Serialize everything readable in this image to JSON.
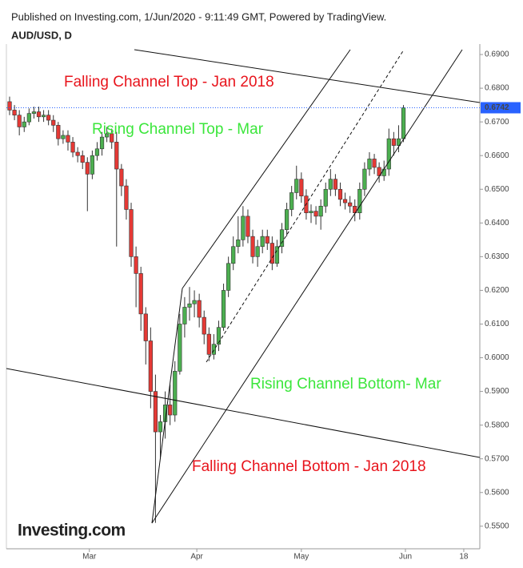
{
  "chart_data": {
    "type": "candlestick",
    "header": "Published on Investing.com, 1/Jun/2020 - 9:11:49 GMT, Powered by TradingView.",
    "title": "AUD/USD, D",
    "logo": "Investing.com",
    "up_color": "#4caf50",
    "down_color": "#e53935",
    "open": [
      0.676,
      0.6735,
      0.672,
      0.6685,
      0.67,
      0.6725,
      0.673,
      0.6715,
      0.672,
      0.6705,
      0.669,
      0.665,
      0.666,
      0.664,
      0.661,
      0.66,
      0.658,
      0.6545,
      0.66,
      0.662,
      0.6655,
      0.6665,
      0.664,
      0.656,
      0.651,
      0.644,
      0.63,
      0.625,
      0.613,
      0.605,
      0.59,
      0.578,
      0.581,
      0.586,
      0.583,
      0.596,
      0.61,
      0.615,
      0.616,
      0.617,
      0.612,
      0.607,
      0.601,
      0.604,
      0.609,
      0.62,
      0.628,
      0.633,
      0.635,
      0.642,
      0.636,
      0.63,
      0.633,
      0.636,
      0.634,
      0.628,
      0.633,
      0.638,
      0.644,
      0.649,
      0.653,
      0.648,
      0.643,
      0.6435,
      0.642,
      0.645,
      0.65,
      0.653,
      0.65,
      0.647,
      0.646,
      0.645,
      0.643,
      0.65,
      0.656,
      0.659,
      0.6565,
      0.654,
      0.656,
      0.665,
      0.663,
      0.665
    ],
    "high": [
      0.6775,
      0.675,
      0.6735,
      0.6715,
      0.674,
      0.6745,
      0.6745,
      0.6735,
      0.6735,
      0.672,
      0.67,
      0.6675,
      0.6675,
      0.6655,
      0.6625,
      0.6615,
      0.6595,
      0.6615,
      0.664,
      0.667,
      0.6685,
      0.668,
      0.667,
      0.6575,
      0.653,
      0.646,
      0.633,
      0.627,
      0.615,
      0.609,
      0.595,
      0.583,
      0.59,
      0.592,
      0.599,
      0.613,
      0.618,
      0.621,
      0.62,
      0.619,
      0.614,
      0.609,
      0.607,
      0.611,
      0.622,
      0.63,
      0.636,
      0.642,
      0.645,
      0.644,
      0.638,
      0.635,
      0.638,
      0.638,
      0.636,
      0.635,
      0.64,
      0.646,
      0.651,
      0.657,
      0.655,
      0.65,
      0.6455,
      0.645,
      0.647,
      0.652,
      0.656,
      0.6545,
      0.652,
      0.649,
      0.648,
      0.647,
      0.652,
      0.658,
      0.661,
      0.6605,
      0.658,
      0.6585,
      0.668,
      0.667,
      0.669,
      0.675
    ],
    "low": [
      0.672,
      0.6705,
      0.666,
      0.667,
      0.669,
      0.671,
      0.67,
      0.67,
      0.669,
      0.667,
      0.663,
      0.6635,
      0.6615,
      0.6595,
      0.658,
      0.656,
      0.6435,
      0.653,
      0.6585,
      0.66,
      0.664,
      0.662,
      0.633,
      0.648,
      0.641,
      0.627,
      0.615,
      0.608,
      0.598,
      0.585,
      0.551,
      0.57,
      0.576,
      0.58,
      0.581,
      0.595,
      0.606,
      0.611,
      0.612,
      0.609,
      0.604,
      0.599,
      0.5995,
      0.602,
      0.608,
      0.618,
      0.626,
      0.631,
      0.633,
      0.634,
      0.628,
      0.627,
      0.631,
      0.632,
      0.626,
      0.627,
      0.631,
      0.636,
      0.642,
      0.647,
      0.646,
      0.641,
      0.64,
      0.6395,
      0.638,
      0.643,
      0.648,
      0.648,
      0.645,
      0.644,
      0.643,
      0.6405,
      0.641,
      0.648,
      0.654,
      0.6545,
      0.652,
      0.6525,
      0.654,
      0.66,
      0.661,
      0.664
    ],
    "close": [
      0.6735,
      0.672,
      0.6685,
      0.67,
      0.6725,
      0.673,
      0.6715,
      0.672,
      0.6705,
      0.669,
      0.665,
      0.666,
      0.664,
      0.661,
      0.66,
      0.658,
      0.6545,
      0.66,
      0.662,
      0.6655,
      0.6665,
      0.664,
      0.656,
      0.651,
      0.644,
      0.63,
      0.625,
      0.613,
      0.605,
      0.59,
      0.578,
      0.581,
      0.586,
      0.583,
      0.596,
      0.61,
      0.615,
      0.616,
      0.617,
      0.612,
      0.607,
      0.601,
      0.604,
      0.609,
      0.62,
      0.628,
      0.633,
      0.635,
      0.642,
      0.636,
      0.63,
      0.633,
      0.636,
      0.634,
      0.628,
      0.633,
      0.638,
      0.644,
      0.649,
      0.653,
      0.648,
      0.643,
      0.6435,
      0.642,
      0.645,
      0.65,
      0.653,
      0.65,
      0.647,
      0.646,
      0.645,
      0.643,
      0.65,
      0.656,
      0.659,
      0.6565,
      0.654,
      0.656,
      0.665,
      0.663,
      0.665,
      0.6742
    ],
    "last_price": 0.6742,
    "xlim": [
      -0.66,
      96.7
    ],
    "xticks": [
      {
        "value": 16.4,
        "label": "Mar"
      },
      {
        "value": 38.5,
        "label": "Apr"
      },
      {
        "value": 60,
        "label": "May"
      },
      {
        "value": 81.4,
        "label": "Jun"
      },
      {
        "value": 93.4,
        "label": "18"
      }
    ],
    "ylim": [
      0.5433,
      0.6931
    ],
    "yticks": [
      {
        "value": 0.55,
        "label": "0.5500"
      },
      {
        "value": 0.56,
        "label": "0.5600"
      },
      {
        "value": 0.57,
        "label": "0.5700"
      },
      {
        "value": 0.58,
        "label": "0.5800"
      },
      {
        "value": 0.59,
        "label": "0.5900"
      },
      {
        "value": 0.6,
        "label": "0.6000"
      },
      {
        "value": 0.61,
        "label": "0.6100"
      },
      {
        "value": 0.62,
        "label": "0.6200"
      },
      {
        "value": 0.63,
        "label": "0.6300"
      },
      {
        "value": 0.64,
        "label": "0.6400"
      },
      {
        "value": 0.65,
        "label": "0.6500"
      },
      {
        "value": 0.66,
        "label": "0.6600"
      },
      {
        "value": 0.67,
        "label": "0.6700"
      },
      {
        "value": 0.68,
        "label": "0.6800"
      },
      {
        "value": 0.69,
        "label": "0.6900"
      }
    ],
    "annotations": [
      {
        "text": "Falling Channel Top - Jan 2018",
        "color": "#e8141c"
      },
      {
        "text": "Rising Channel Top - Mar",
        "color": "#3be63b"
      },
      {
        "text": "Rising Channel Bottom- Mar",
        "color": "#3be63b"
      },
      {
        "text": "Falling Channel Bottom - Jan 2018",
        "color": "#e8141c"
      }
    ]
  }
}
